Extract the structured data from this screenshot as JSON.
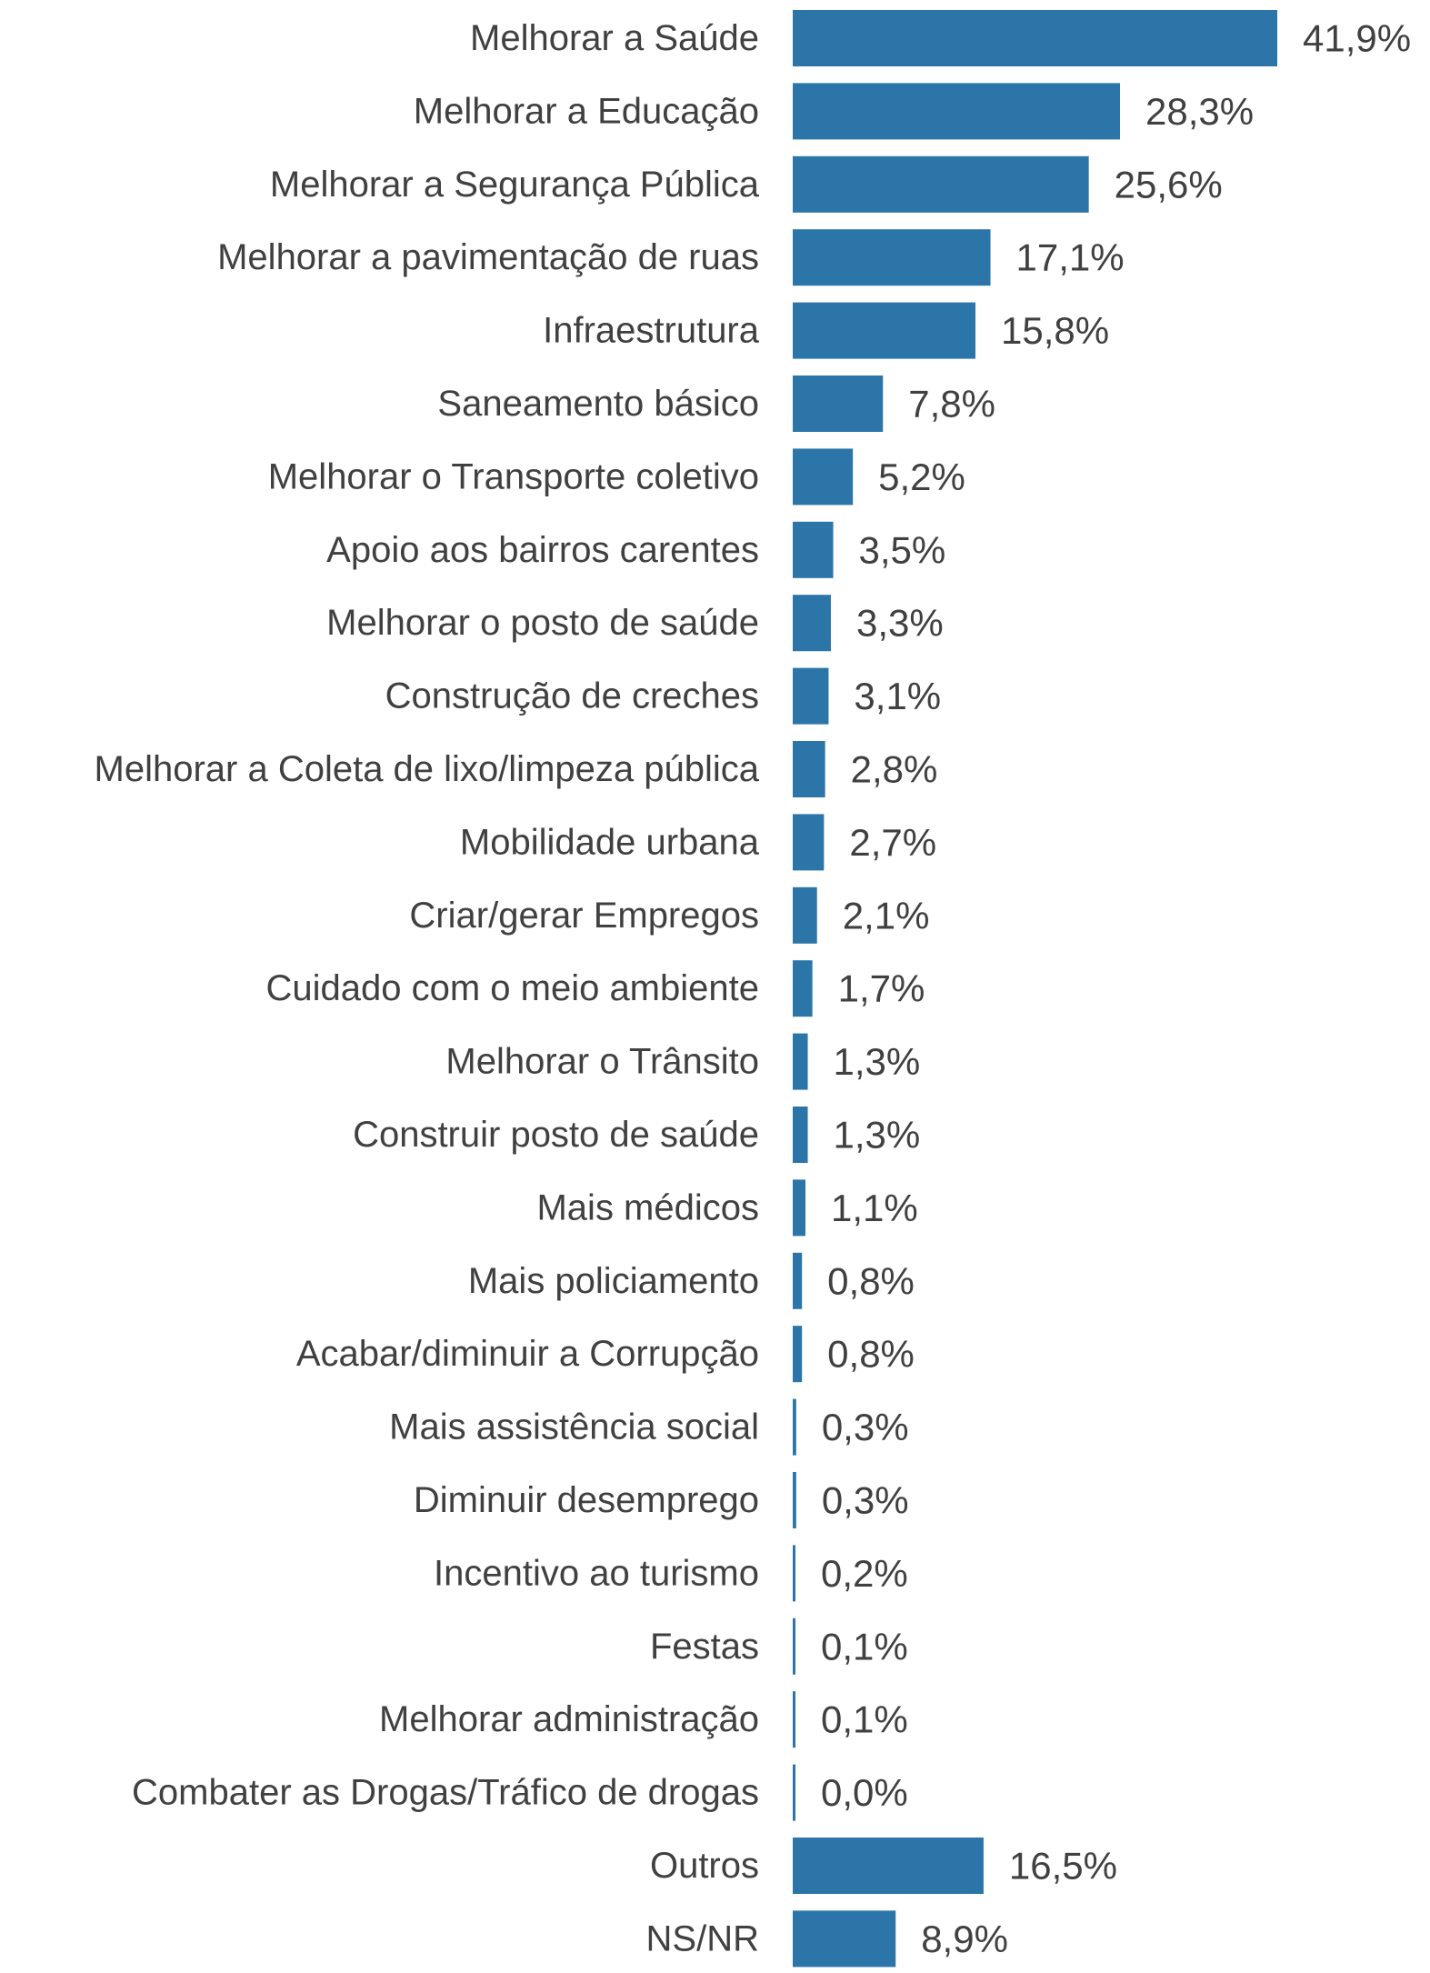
{
  "chart_data": {
    "type": "bar",
    "orientation": "horizontal",
    "categories": [
      "Melhorar a Saúde",
      "Melhorar a Educação",
      "Melhorar a Segurança Pública",
      "Melhorar a pavimentação de ruas",
      "Infraestrutura",
      "Saneamento básico",
      "Melhorar o Transporte coletivo",
      "Apoio aos bairros carentes",
      "Melhorar o posto de saúde",
      "Construção de creches",
      "Melhorar a Coleta de lixo/limpeza pública",
      "Mobilidade urbana",
      "Criar/gerar Empregos",
      "Cuidado com o meio ambiente",
      "Melhorar o Trânsito",
      "Construir posto de saúde",
      "Mais médicos",
      "Mais policiamento",
      "Acabar/diminuir a Corrupção",
      "Mais assistência social",
      "Diminuir desemprego",
      "Incentivo ao turismo",
      "Festas",
      "Melhorar administração",
      "Combater as Drogas/Tráfico de drogas",
      "Outros",
      "NS/NR"
    ],
    "values": [
      41.9,
      28.3,
      25.6,
      17.1,
      15.8,
      7.8,
      5.2,
      3.5,
      3.3,
      3.1,
      2.8,
      2.7,
      2.1,
      1.7,
      1.3,
      1.3,
      1.1,
      0.8,
      0.8,
      0.3,
      0.3,
      0.2,
      0.1,
      0.1,
      0.0,
      16.5,
      8.9
    ],
    "data_labels": [
      "41,9%",
      "28,3%",
      "25,6%",
      "17,1%",
      "15,8%",
      "7,8%",
      "5,2%",
      "3,5%",
      "3,3%",
      "3,1%",
      "2,8%",
      "2,7%",
      "2,1%",
      "1,7%",
      "1,3%",
      "1,3%",
      "1,1%",
      "0,8%",
      "0,8%",
      "0,3%",
      "0,3%",
      "0,2%",
      "0,1%",
      "0,1%",
      "0,0%",
      "16,5%",
      "8,9%"
    ],
    "axes_visible": false,
    "grid": false,
    "legend": "none",
    "bar_color": "#2b75a8",
    "text_color": "#404040"
  }
}
